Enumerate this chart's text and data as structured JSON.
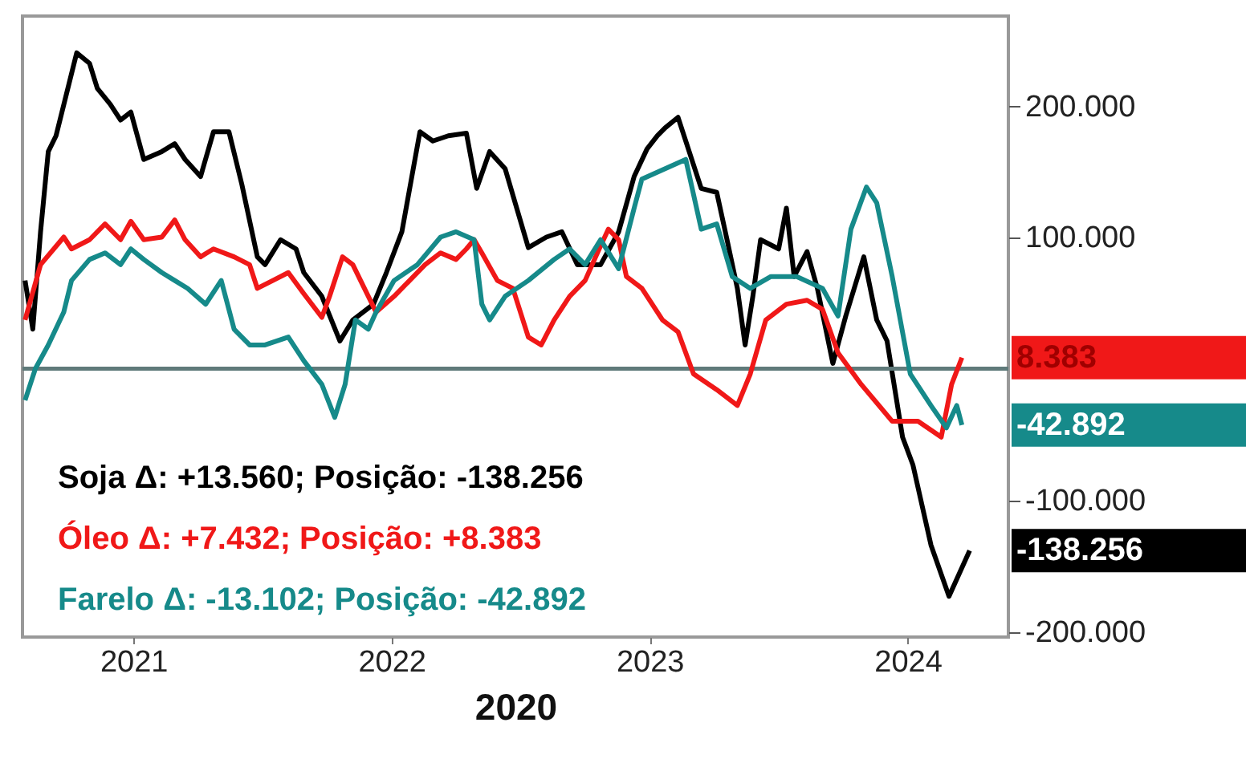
{
  "chart_data": {
    "type": "line",
    "xlabel": "2020",
    "xlim": [
      2020.57,
      2024.39
    ],
    "xticks": [
      2021,
      2022,
      2023,
      2024
    ],
    "ylim": [
      -204000,
      268000
    ],
    "yticks": [
      {
        "value": -200000,
        "label": "-200.000"
      },
      {
        "value": -100000,
        "label": "-100.000"
      },
      {
        "value": 100000,
        "label": "100.000"
      },
      {
        "value": 200000,
        "label": "200.000"
      }
    ],
    "series": [
      {
        "color": "#000000",
        "x": [
          2020.58,
          2020.61,
          2020.64,
          2020.67,
          2020.7,
          2020.78,
          2020.83,
          2020.86,
          2020.91,
          2020.95,
          2020.99,
          2021.04,
          2021.11,
          2021.16,
          2021.2,
          2021.26,
          2021.31,
          2021.37,
          2021.42,
          2021.48,
          2021.51,
          2021.57,
          2021.63,
          2021.66,
          2021.73,
          2021.8,
          2021.85,
          2021.93,
          2021.98,
          2022.04,
          2022.11,
          2022.16,
          2022.22,
          2022.29,
          2022.33,
          2022.38,
          2022.44,
          2022.53,
          2022.6,
          2022.66,
          2022.72,
          2022.81,
          2022.88,
          2022.94,
          2022.99,
          2023.03,
          2023.06,
          2023.11,
          2023.2,
          2023.26,
          2023.3,
          2023.34,
          2023.37,
          2023.4,
          2023.43,
          2023.5,
          2023.53,
          2023.56,
          2023.61,
          2023.65,
          2023.71,
          2023.76,
          2023.83,
          2023.88,
          2023.92,
          2023.98,
          2024.02,
          2024.09,
          2024.16,
          2024.24
        ],
        "values": [
          67000,
          30000,
          104000,
          165000,
          177000,
          240000,
          232000,
          213000,
          201000,
          189000,
          195000,
          159000,
          165000,
          171000,
          159000,
          146000,
          180000,
          180000,
          140000,
          85000,
          79000,
          98000,
          91000,
          73000,
          55000,
          21000,
          37000,
          49000,
          73000,
          104000,
          180000,
          173000,
          177000,
          179000,
          137000,
          165000,
          152000,
          92000,
          100000,
          104000,
          79000,
          79000,
          104000,
          146000,
          167000,
          177000,
          183000,
          191000,
          137000,
          134000,
          98000,
          61000,
          18000,
          55000,
          98000,
          91000,
          122000,
          70000,
          89000,
          61000,
          4000,
          40000,
          85000,
          37000,
          21000,
          -52000,
          -73000,
          -134000,
          -173000,
          -138256
        ]
      },
      {
        "color": "#f01818",
        "x": [
          2020.58,
          2020.64,
          2020.73,
          2020.76,
          2020.83,
          2020.89,
          2020.95,
          2020.99,
          2021.04,
          2021.11,
          2021.16,
          2021.2,
          2021.26,
          2021.31,
          2021.39,
          2021.45,
          2021.48,
          2021.54,
          2021.6,
          2021.66,
          2021.73,
          2021.76,
          2021.81,
          2021.85,
          2021.88,
          2021.94,
          2022.01,
          2022.07,
          2022.13,
          2022.19,
          2022.25,
          2022.29,
          2022.32,
          2022.35,
          2022.41,
          2022.47,
          2022.53,
          2022.58,
          2022.63,
          2022.69,
          2022.75,
          2022.8,
          2022.84,
          2022.88,
          2022.91,
          2022.97,
          2023.05,
          2023.11,
          2023.17,
          2023.26,
          2023.34,
          2023.39,
          2023.45,
          2023.53,
          2023.61,
          2023.67,
          2023.73,
          2023.82,
          2023.94,
          2024.04,
          2024.13,
          2024.17,
          2024.21
        ],
        "values": [
          37000,
          79000,
          100000,
          91000,
          98000,
          110000,
          98000,
          112000,
          98000,
          100000,
          113000,
          98000,
          85000,
          91000,
          85000,
          79000,
          61000,
          67000,
          73000,
          57000,
          39000,
          55000,
          85000,
          79000,
          67000,
          43000,
          55000,
          67000,
          79000,
          88000,
          83000,
          91000,
          98000,
          88000,
          67000,
          61000,
          24000,
          18000,
          37000,
          55000,
          67000,
          89000,
          106000,
          98000,
          70000,
          61000,
          37000,
          28000,
          -4000,
          -16000,
          -28000,
          -4000,
          37000,
          49000,
          52000,
          45000,
          12000,
          -12000,
          -40000,
          -40000,
          -52000,
          -12000,
          8383
        ]
      },
      {
        "color": "#168a8a",
        "x": [
          2020.58,
          2020.62,
          2020.67,
          2020.73,
          2020.76,
          2020.83,
          2020.89,
          2020.95,
          2020.99,
          2021.04,
          2021.11,
          2021.16,
          2021.21,
          2021.28,
          2021.34,
          2021.39,
          2021.45,
          2021.51,
          2021.6,
          2021.66,
          2021.73,
          2021.78,
          2021.82,
          2021.86,
          2021.91,
          2021.94,
          2022.01,
          2022.1,
          2022.19,
          2022.25,
          2022.32,
          2022.35,
          2022.38,
          2022.44,
          2022.53,
          2022.63,
          2022.69,
          2022.75,
          2022.81,
          2022.88,
          2022.94,
          2022.97,
          2023.14,
          2023.2,
          2023.26,
          2023.32,
          2023.39,
          2023.47,
          2023.57,
          2023.67,
          2023.73,
          2023.78,
          2023.84,
          2023.88,
          2023.94,
          2024.01,
          2024.09,
          2024.15,
          2024.19,
          2024.21
        ],
        "values": [
          -24000,
          0,
          18000,
          43000,
          67000,
          83000,
          88000,
          79000,
          91000,
          83000,
          73000,
          67000,
          61000,
          49000,
          67000,
          30000,
          18000,
          18000,
          24000,
          6000,
          -12000,
          -37000,
          -12000,
          37000,
          30000,
          43000,
          67000,
          79000,
          100000,
          104000,
          98000,
          49000,
          37000,
          55000,
          67000,
          83000,
          91000,
          79000,
          98000,
          76000,
          122000,
          144000,
          159000,
          106000,
          110000,
          70000,
          61000,
          70000,
          70000,
          61000,
          40000,
          106000,
          138000,
          126000,
          70000,
          -4000,
          -28000,
          -45000,
          -28000,
          -42892
        ]
      }
    ],
    "ref_lines": [
      {
        "axis": "y",
        "value": 0,
        "color": "#5f7a7a"
      }
    ],
    "annotations": [
      "Soja Δ: +13.560; Posição: -138.256",
      "Óleo Δ: +7.432; Posição: +8.383",
      "Farelo Δ: -13.102; Posição: -42.892",
      "-138.256",
      "8.383",
      "-42.892"
    ]
  }
}
